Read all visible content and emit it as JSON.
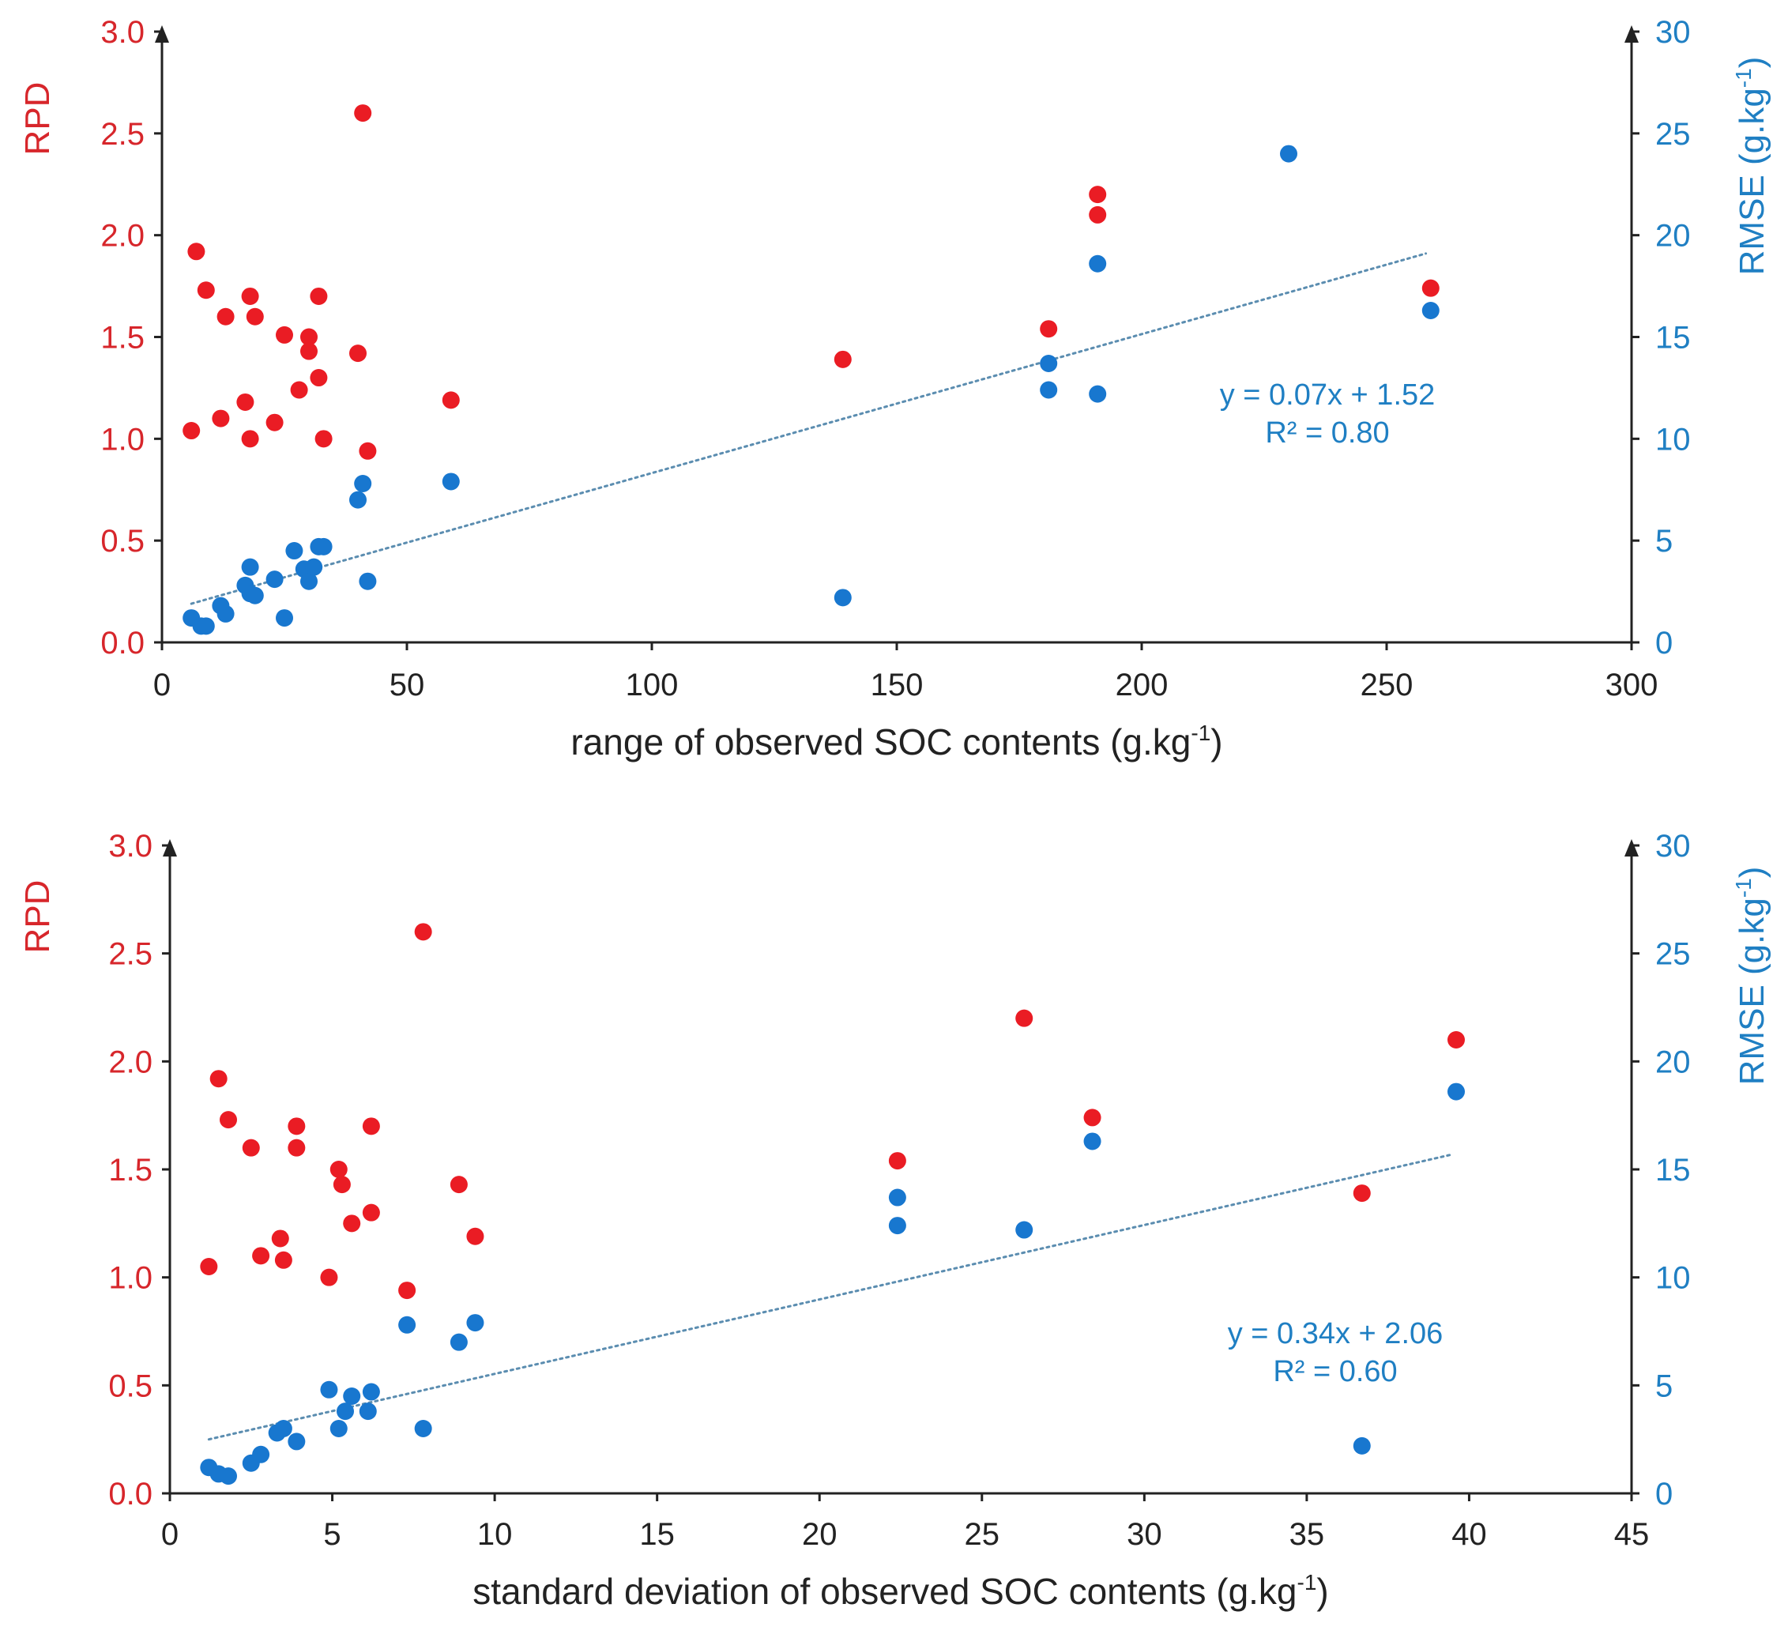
{
  "chart_data": [
    {
      "type": "scatter",
      "title": "",
      "xlabel": "range of observed SOC contents (g.kg",
      "xlabel_sup": "-1",
      "xlabel_end": ")",
      "ylabel_left": "RPD",
      "ylabel_right": "RMSE (g.kg",
      "ylabel_right_sup": "-1",
      "ylabel_right_end": ")",
      "xlim": [
        0,
        300
      ],
      "ylim_left": [
        0,
        3
      ],
      "ylim_right": [
        0,
        30
      ],
      "x_ticks": [
        "0",
        "50",
        "100",
        "150",
        "200",
        "250",
        "300"
      ],
      "x_tick_values": [
        0,
        50,
        100,
        150,
        200,
        250,
        300
      ],
      "y_left_ticks": [
        "0.0",
        "0.5",
        "1.0",
        "1.5",
        "2.0",
        "2.5",
        "3.0"
      ],
      "y_left_tick_values": [
        0,
        0.5,
        1,
        1.5,
        2,
        2.5,
        3
      ],
      "y_right_ticks": [
        "0",
        "5",
        "10",
        "15",
        "20",
        "25",
        "30"
      ],
      "y_right_tick_values": [
        0,
        5,
        10,
        15,
        20,
        25,
        30
      ],
      "colors": {
        "rpd": "#ea1c24",
        "rmse": "#1877cf",
        "trend": "#5b8db0",
        "axis": "#222222"
      },
      "series": [
        {
          "name": "RPD",
          "axis": "left",
          "points": [
            [
              6,
              1.04
            ],
            [
              7,
              1.92
            ],
            [
              9,
              1.73
            ],
            [
              12,
              1.1
            ],
            [
              13,
              1.6
            ],
            [
              17,
              1.18
            ],
            [
              18,
              1.7
            ],
            [
              18,
              1.0
            ],
            [
              19,
              1.6
            ],
            [
              23,
              1.08
            ],
            [
              25,
              1.51
            ],
            [
              28,
              1.24
            ],
            [
              30,
              1.5
            ],
            [
              30,
              1.43
            ],
            [
              32,
              1.7
            ],
            [
              32,
              1.3
            ],
            [
              33,
              1.0
            ],
            [
              40,
              1.42
            ],
            [
              41,
              2.6
            ],
            [
              42,
              0.94
            ],
            [
              59,
              1.19
            ],
            [
              139,
              1.39
            ],
            [
              181,
              1.54
            ],
            [
              191,
              2.2
            ],
            [
              191,
              2.1
            ],
            [
              259,
              1.74
            ]
          ]
        },
        {
          "name": "RMSE",
          "axis": "right",
          "points": [
            [
              6,
              1.2
            ],
            [
              8,
              0.8
            ],
            [
              9,
              0.8
            ],
            [
              12,
              1.8
            ],
            [
              13,
              1.4
            ],
            [
              17,
              2.8
            ],
            [
              18,
              3.7
            ],
            [
              18,
              2.4
            ],
            [
              19,
              2.3
            ],
            [
              23,
              3.1
            ],
            [
              25,
              1.2
            ],
            [
              27,
              4.5
            ],
            [
              29,
              3.6
            ],
            [
              30,
              3.0
            ],
            [
              31,
              3.7
            ],
            [
              32,
              4.7
            ],
            [
              33,
              4.7
            ],
            [
              40,
              7.0
            ],
            [
              41,
              7.8
            ],
            [
              42,
              3.0
            ],
            [
              59,
              7.9
            ],
            [
              139,
              2.2
            ],
            [
              181,
              13.7
            ],
            [
              181,
              12.4
            ],
            [
              191,
              18.6
            ],
            [
              191,
              12.2
            ],
            [
              230,
              24.0
            ],
            [
              259,
              16.3
            ]
          ]
        }
      ],
      "trendline": {
        "axis": "right",
        "x": [
          6,
          258
        ],
        "y": [
          1.9,
          19.1
        ]
      },
      "equation": "y = 0.07x + 1.52",
      "r2": "R² = 0.80"
    },
    {
      "type": "scatter",
      "title": "",
      "xlabel": "standard deviation of observed SOC contents (g.kg",
      "xlabel_sup": "-1",
      "xlabel_end": ")",
      "ylabel_left": "RPD",
      "ylabel_right": "RMSE (g.kg",
      "ylabel_right_sup": "-1",
      "ylabel_right_end": ")",
      "xlim": [
        0,
        45
      ],
      "ylim_left": [
        0,
        3
      ],
      "ylim_right": [
        0,
        30
      ],
      "x_ticks": [
        "0",
        "5",
        "10",
        "15",
        "20",
        "25",
        "30",
        "35",
        "40",
        "45"
      ],
      "x_tick_values": [
        0,
        5,
        10,
        15,
        20,
        25,
        30,
        35,
        40,
        45
      ],
      "y_left_ticks": [
        "0.0",
        "0.5",
        "1.0",
        "1.5",
        "2.0",
        "2.5",
        "3.0"
      ],
      "y_left_tick_values": [
        0,
        0.5,
        1,
        1.5,
        2,
        2.5,
        3
      ],
      "y_right_ticks": [
        "0",
        "5",
        "10",
        "15",
        "20",
        "25",
        "30"
      ],
      "y_right_tick_values": [
        0,
        5,
        10,
        15,
        20,
        25,
        30
      ],
      "colors": {
        "rpd": "#ea1c24",
        "rmse": "#1877cf",
        "trend": "#5b8db0",
        "axis": "#222222"
      },
      "series": [
        {
          "name": "RPD",
          "axis": "left",
          "points": [
            [
              1.2,
              1.05
            ],
            [
              1.5,
              1.92
            ],
            [
              1.8,
              1.73
            ],
            [
              2.5,
              1.6
            ],
            [
              2.8,
              1.1
            ],
            [
              3.4,
              1.18
            ],
            [
              3.5,
              1.08
            ],
            [
              3.9,
              1.7
            ],
            [
              3.9,
              1.6
            ],
            [
              4.9,
              1.0
            ],
            [
              5.2,
              1.5
            ],
            [
              5.3,
              1.43
            ],
            [
              5.6,
              1.25
            ],
            [
              6.2,
              1.7
            ],
            [
              6.2,
              1.3
            ],
            [
              7.3,
              0.94
            ],
            [
              7.8,
              2.6
            ],
            [
              8.9,
              1.43
            ],
            [
              9.4,
              1.19
            ],
            [
              22.4,
              1.54
            ],
            [
              26.3,
              2.2
            ],
            [
              28.4,
              1.74
            ],
            [
              36.7,
              1.39
            ],
            [
              39.6,
              2.1
            ]
          ]
        },
        {
          "name": "RMSE",
          "axis": "right",
          "points": [
            [
              1.2,
              1.2
            ],
            [
              1.5,
              0.9
            ],
            [
              1.8,
              0.8
            ],
            [
              2.5,
              1.4
            ],
            [
              2.8,
              1.8
            ],
            [
              3.3,
              2.8
            ],
            [
              3.5,
              3.0
            ],
            [
              3.9,
              2.4
            ],
            [
              4.9,
              4.8
            ],
            [
              5.2,
              3.0
            ],
            [
              5.4,
              3.8
            ],
            [
              5.6,
              4.5
            ],
            [
              6.1,
              3.8
            ],
            [
              6.2,
              4.7
            ],
            [
              7.3,
              7.8
            ],
            [
              7.8,
              3.0
            ],
            [
              8.9,
              7.0
            ],
            [
              9.4,
              7.9
            ],
            [
              22.4,
              13.7
            ],
            [
              22.4,
              12.4
            ],
            [
              26.3,
              12.2
            ],
            [
              28.4,
              16.3
            ],
            [
              36.7,
              2.2
            ],
            [
              39.6,
              18.6
            ]
          ]
        }
      ],
      "trendline": {
        "axis": "right",
        "x": [
          1.2,
          39.5
        ],
        "y": [
          2.5,
          15.7
        ]
      },
      "equation": "y = 0.34x + 2.06",
      "r2": "R² = 0.60"
    }
  ]
}
